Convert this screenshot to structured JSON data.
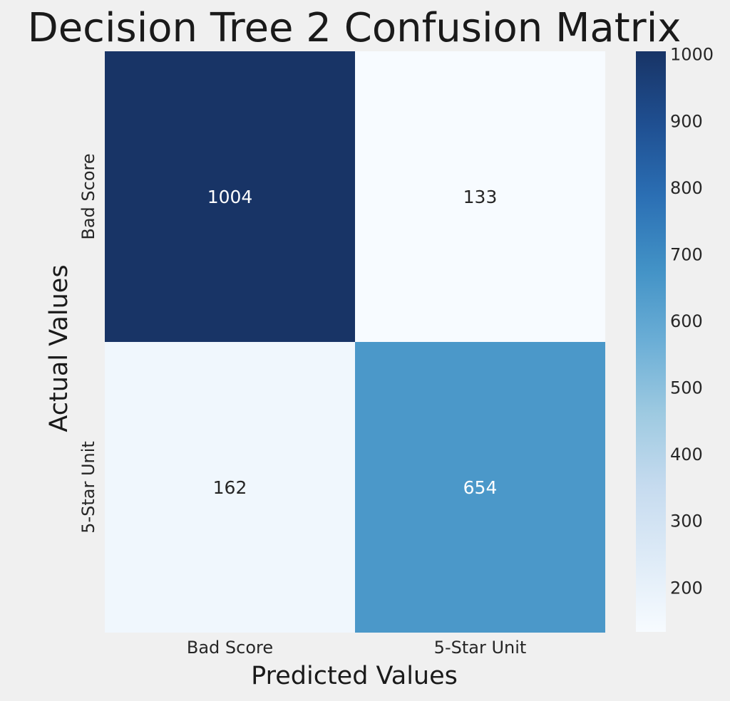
{
  "chart_data": {
    "type": "heatmap",
    "title": "Decision Tree 2 Confusion Matrix",
    "xlabel": "Predicted Values",
    "ylabel": "Actual Values",
    "x_categories": [
      "Bad Score",
      "5-Star Unit"
    ],
    "y_categories": [
      "Bad Score",
      "5-Star Unit"
    ],
    "matrix": [
      [
        1004,
        133
      ],
      [
        162,
        654
      ]
    ],
    "colormap": "Blues",
    "value_range": [
      133,
      1004
    ],
    "colorbar_ticks": [
      200,
      300,
      400,
      500,
      600,
      700,
      800,
      900,
      1000
    ],
    "colors": {
      "background": "#f0f0f0",
      "cmap_low": "#f7fbff",
      "cmap_high": "#183466",
      "text_dark": "#262626",
      "text_light": "#ffffff"
    }
  }
}
